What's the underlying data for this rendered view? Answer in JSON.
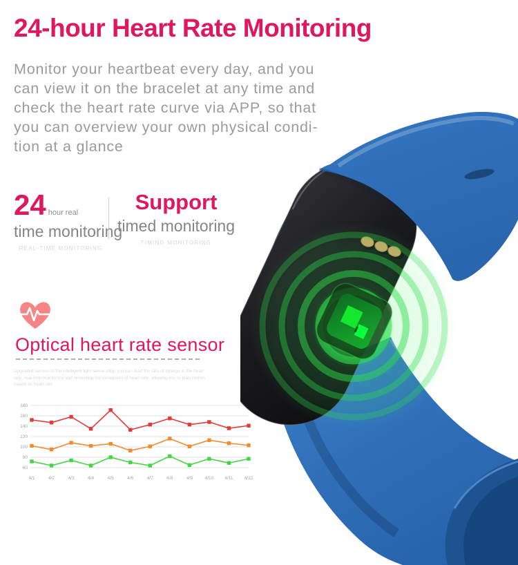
{
  "colors": {
    "accent": "#e0175a",
    "body_text": "#9b9b9b",
    "caption_text": "#d6d6d6",
    "heart_icon": "#f58484",
    "band_blue": "#2e6db4",
    "glow_green": "#2edd4c",
    "capsule_black": "#1a1a1e",
    "pin_gold": "#c9a76a"
  },
  "page": {
    "title": "24-hour Heart Rate Monitoring",
    "description": "Monitor your heartbeat every day, and you\ncan view it on the bracelet at any time and\ncheck the heart rate curve via APP, so that\nyou can overview your own physical condi-\ntion at a glance"
  },
  "features": {
    "left": {
      "big": "24",
      "suffix": "hour real",
      "line2": "time monitoring",
      "caption": "REAL-TIME MONITORING"
    },
    "right": {
      "line1": "Support",
      "line2": "timed monitoring",
      "caption": "TIMING MONITORING"
    }
  },
  "sensor_section": {
    "heading": "Optical heart rate sensor",
    "icon": "heart-pulse-icon",
    "fine_print": "Upgraded version of the intelligent light sense chip, you can read the rate of change in the heart\nrate, real-time monitoring and reminding the movement of heart rate, allowing you to plan motion\nbased on heart rate"
  },
  "chart_data": {
    "type": "line",
    "title": "",
    "xlabel": "",
    "ylabel": "",
    "categories": [
      "4/1",
      "4/2",
      "4/3",
      "4/4",
      "4/5",
      "4/6",
      "4/7",
      "4/8",
      "4/9",
      "4/10",
      "4/11",
      "4/12"
    ],
    "series": [
      {
        "name": "red-line",
        "color": "#e23b3b",
        "values": [
          152,
          147,
          158,
          135,
          171,
          133,
          143,
          155,
          143,
          148,
          136,
          141
        ]
      },
      {
        "name": "orange-line",
        "color": "#ef8b31",
        "values": [
          102,
          95,
          108,
          102,
          106,
          93,
          101,
          116,
          101,
          113,
          107,
          103
        ]
      },
      {
        "name": "green-line",
        "color": "#46d446",
        "values": [
          72,
          64,
          74,
          64,
          80,
          70,
          64,
          82,
          65,
          77,
          69,
          77
        ]
      }
    ],
    "ylim": [
      60,
      180
    ],
    "ytick": 20,
    "grid": true,
    "legend": "none",
    "marker": "square"
  }
}
